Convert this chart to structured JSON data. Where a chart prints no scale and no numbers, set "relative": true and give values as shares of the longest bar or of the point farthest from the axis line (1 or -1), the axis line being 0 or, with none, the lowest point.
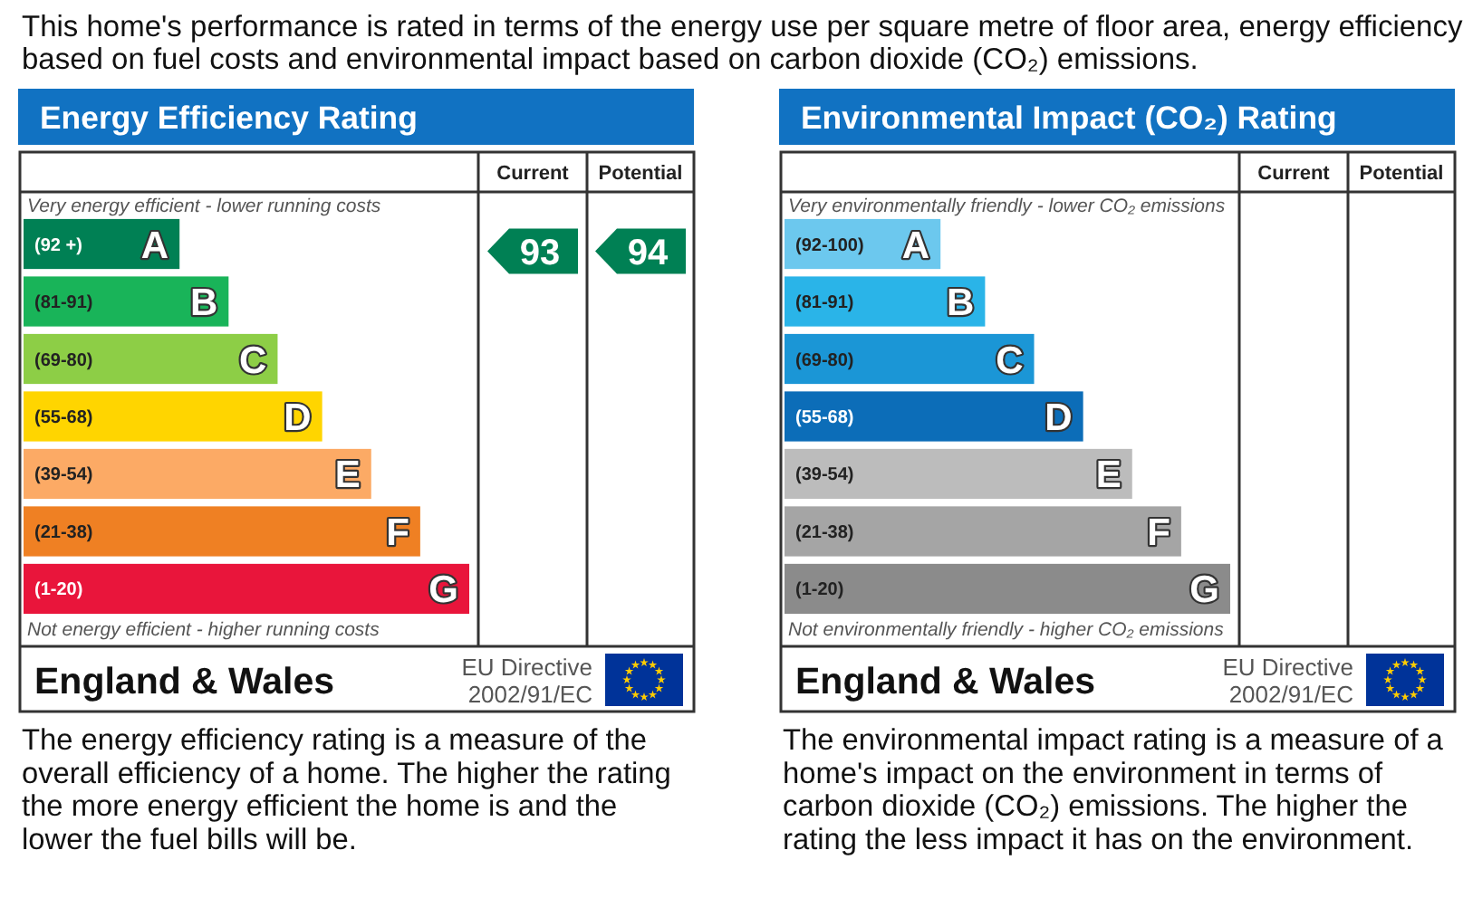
{
  "chart_data": [
    {
      "type": "other",
      "annotations": [
        "This home's performance is rated in terms of the energy use per square metre of floor area, energy efficiency based on fuel costs and environmental impact based on carbon dioxide (CO₂) emissions."
      ]
    },
    {
      "type": "bar",
      "orientation": "horizontal",
      "relative": true,
      "title": "Energy Efficiency Rating",
      "categories": [
        "A",
        "B",
        "C",
        "D",
        "E",
        "F",
        "G"
      ],
      "values": [
        0.35,
        0.46,
        0.57,
        0.67,
        0.78,
        0.89,
        1
      ],
      "colors": [
        "#008054",
        "#19b459",
        "#8dce46",
        "#ffd500",
        "#fcaa65",
        "#ef8023",
        "#e9153b"
      ],
      "annotations": [
        "Current",
        "Potential",
        "Very energy efficient - lower running costs",
        "Not energy efficient - higher running costs",
        "England & Wales",
        "EU Directive 2002/91/EC",
        "The energy efficiency rating is a measure of the overall efficiency of a home. The higher the rating the more energy efficient the home is and the lower the fuel bills will be.",
        "(92 +)",
        "(81-91)",
        "(69-80)",
        "(55-68)",
        "(39-54)",
        "(21-38)",
        "(1-20)",
        "93",
        "94"
      ]
    },
    {
      "type": "bar",
      "orientation": "horizontal",
      "relative": true,
      "title": "Environmental Impact (CO₂) Rating",
      "categories": [
        "A",
        "B",
        "C",
        "D",
        "E",
        "F",
        "G"
      ],
      "values": [
        0.35,
        0.45,
        0.56,
        0.67,
        0.78,
        0.89,
        1
      ],
      "colors": [
        "#6cc8ee",
        "#2ab4e8",
        "#1b96d6",
        "#0c6db8",
        "#bcbcbc",
        "#a5a5a5",
        "#8b8b8b"
      ],
      "annotations": [
        "Current",
        "Potential",
        "Very environmentally friendly - lower CO₂ emissions",
        "Not environmentally friendly - higher CO₂ emissions",
        "England & Wales",
        "EU Directive 2002/91/EC",
        "The environmental impact rating is a measure of a home's impact on the environment in terms of carbon dioxide (CO₂) emissions. The higher the rating the less impact it has on the environment.",
        "(92-100)",
        "(81-91)",
        "(69-80)",
        "(55-68)",
        "(39-54)",
        "(21-38)",
        "(1-20)"
      ]
    }
  ]
}
